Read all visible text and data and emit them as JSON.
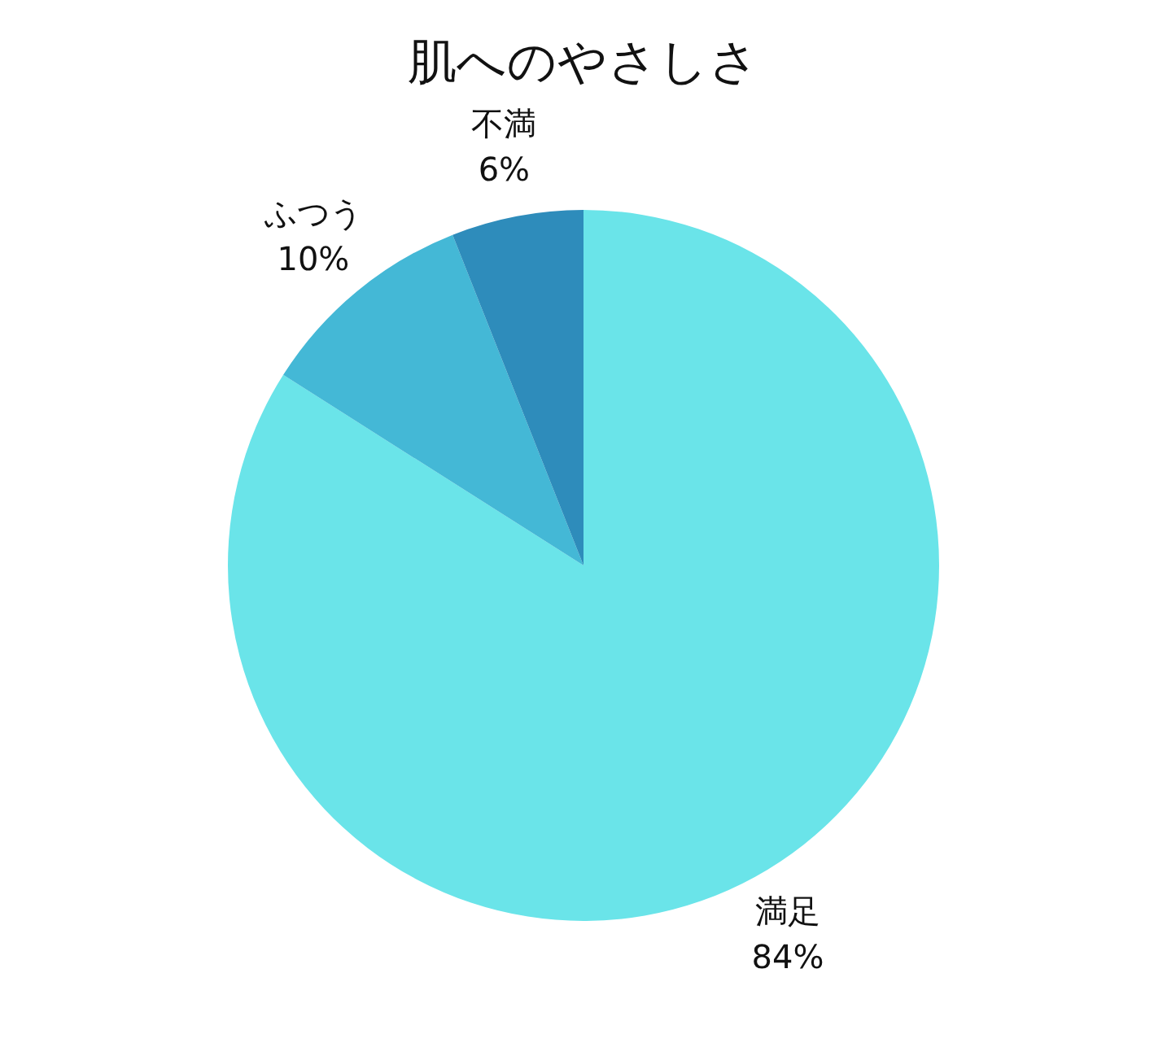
{
  "chart_data": {
    "type": "pie",
    "title": "肌へのやさしさ",
    "categories": [
      "満足",
      "ふつう",
      "不満"
    ],
    "values": [
      84,
      10,
      6
    ],
    "value_labels": [
      "84%",
      "10%",
      "6%"
    ],
    "colors": [
      "#6ae4e9",
      "#44b8d6",
      "#2e8cbb"
    ],
    "legend": false
  }
}
